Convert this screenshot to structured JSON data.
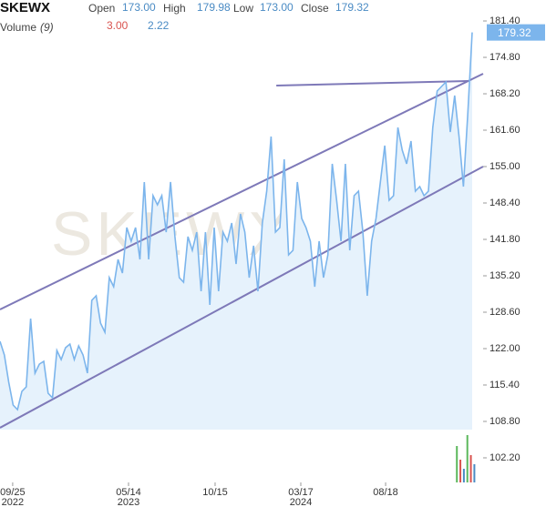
{
  "header": {
    "symbol": "SKEWX",
    "open_label": "Open",
    "open": "173.00",
    "high_label": "High",
    "high": "179.98",
    "low_label": "Low",
    "low": "173.00",
    "close_label": "Close",
    "close": "179.32",
    "volume_label": "Volume",
    "volume_period": "(9)",
    "volume_a": "3.00",
    "volume_b": "2.22"
  },
  "chart_data": {
    "type": "line",
    "watermark": "SKEWX",
    "series": [
      {
        "name": "SKEWX",
        "color": "#7cb5ec",
        "fill": "#e6f2fc",
        "values": [
          123.32,
          120.84,
          115.89,
          111.77,
          110.94,
          114.24,
          115.07,
          127.44,
          117.54,
          119.19,
          119.69,
          113.91,
          113.09,
          121.67,
          120.02,
          122.16,
          122.82,
          120.02,
          122.49,
          120.84,
          117.54,
          130.74,
          131.57,
          126.62,
          124.97,
          134.87,
          133.22,
          138.17,
          135.69,
          143.94,
          141.47,
          143.94,
          138.17,
          152.19,
          138.17,
          149.72,
          148.07,
          149.72,
          143.12,
          152.19,
          142.29,
          134.87,
          134.04,
          142.29,
          139.82,
          143.12,
          132.39,
          143.12,
          129.92,
          143.94,
          132.39,
          143.12,
          141.47,
          144.77,
          137.34,
          146.42,
          143.12,
          134.87,
          140.64,
          132.39,
          144.77,
          150.54,
          160.44,
          143.12,
          143.94,
          156.32,
          138.99,
          139.82,
          152.19,
          145.59,
          143.94,
          141.47,
          133.22,
          141.47,
          134.87,
          138.99,
          155.49,
          148.89,
          141.47,
          155.49,
          139.82,
          149.72,
          150.54,
          143.12,
          131.57,
          141.47,
          145.59,
          152.19,
          158.79,
          148.89,
          149.72,
          162.09,
          157.97,
          155.49,
          159.62,
          150.54,
          151.37,
          149.72,
          150.54,
          162.09,
          168.69,
          169.52,
          170.34,
          161.27,
          167.87,
          160.44,
          151.37,
          164.57,
          179.32
        ]
      }
    ],
    "xlim": [
      0,
      110.5
    ],
    "ylim": [
      97.74,
      185.2
    ],
    "xticks": [
      {
        "value": 2.9,
        "label": "09/25",
        "year": "2022"
      },
      {
        "value": 29.4,
        "label": "05/14",
        "year": "2023"
      },
      {
        "value": 49.2,
        "label": "10/15"
      },
      {
        "value": 68.8,
        "label": "03/17",
        "year": "2024"
      },
      {
        "value": 88.2,
        "label": "08/18"
      }
    ],
    "yticks": [
      {
        "value": 181.4,
        "label": "181.40"
      },
      {
        "value": 174.8,
        "label": "174.80"
      },
      {
        "value": 168.2,
        "label": "168.20"
      },
      {
        "value": 161.6,
        "label": "161.60"
      },
      {
        "value": 155,
        "label": "155.00"
      },
      {
        "value": 148.4,
        "label": "148.40"
      },
      {
        "value": 141.8,
        "label": "141.80"
      },
      {
        "value": 135.2,
        "label": "135.20"
      },
      {
        "value": 128.6,
        "label": "128.60"
      },
      {
        "value": 122,
        "label": "122.00"
      },
      {
        "value": 115.4,
        "label": "115.40"
      },
      {
        "value": 108.8,
        "label": "108.80"
      },
      {
        "value": 102.2,
        "label": "102.20"
      }
    ],
    "trendlines": [
      {
        "x": [
          0,
          110.5
        ],
        "y": [
          129.1,
          171.83
        ],
        "color": "#7e79b8"
      },
      {
        "x": [
          0,
          110.5
        ],
        "y": [
          107.65,
          155.0
        ],
        "color": "#7e79b8"
      },
      {
        "x": [
          63.2,
          107.0
        ],
        "y": [
          169.69,
          170.51
        ],
        "color": "#7e79b8"
      }
    ],
    "volume": {
      "x": [
        104.5,
        105.3,
        106.1,
        106.9,
        107.7,
        108.5
      ],
      "values": [
        40,
        25,
        15,
        52,
        30,
        20
      ],
      "colors": [
        "#5cb85c",
        "#d9534f",
        "#4a8bc4",
        "#5cb85c",
        "#d9534f",
        "#4a8bc4"
      ],
      "ylim": [
        0,
        60
      ]
    },
    "last_value_color": "#7cb5ec"
  }
}
